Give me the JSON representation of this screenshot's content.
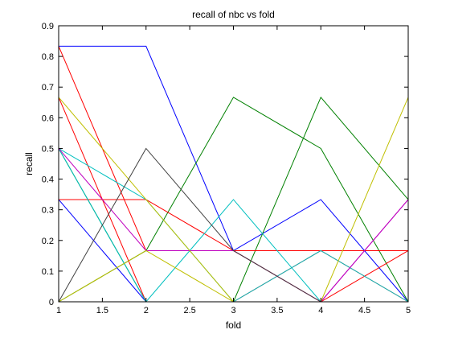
{
  "chart_data": {
    "type": "line",
    "title": "recall of nbc vs fold",
    "xlabel": "fold",
    "ylabel": "recall",
    "xlim": [
      1,
      5
    ],
    "ylim": [
      0,
      0.9
    ],
    "xticks": [
      "1",
      "1.5",
      "2",
      "2.5",
      "3",
      "3.5",
      "4",
      "4.5",
      "5"
    ],
    "yticks": [
      "0",
      "0.1",
      "0.2",
      "0.3",
      "0.4",
      "0.5",
      "0.6",
      "0.7",
      "0.8",
      "0.9"
    ],
    "grid": false,
    "x": [
      1,
      2,
      3,
      4,
      5
    ],
    "series": [
      {
        "color": "#0000ff",
        "values": [
          0.8333,
          0.8333,
          0.1667,
          0.3333,
          0.0
        ]
      },
      {
        "color": "#0000ff",
        "values": [
          0.3333,
          0.0,
          0.0,
          0.0,
          0.0
        ]
      },
      {
        "color": "#008000",
        "values": [
          0.0,
          0.1667,
          0.6667,
          0.5,
          0.0
        ]
      },
      {
        "color": "#008000",
        "values": [
          0.5,
          0.0,
          0.0,
          0.6667,
          0.3333
        ]
      },
      {
        "color": "#ff0000",
        "values": [
          0.8333,
          0.1667,
          0.1667,
          0.1667,
          0.1667
        ]
      },
      {
        "color": "#ff0000",
        "values": [
          0.6667,
          0.0,
          0.0,
          0.1667,
          0.0
        ]
      },
      {
        "color": "#ff0000",
        "values": [
          0.3333,
          0.3333,
          0.1667,
          0.0,
          0.1667
        ]
      },
      {
        "color": "#00bfbf",
        "values": [
          0.5,
          0.0,
          0.3333,
          0.0,
          0.0
        ]
      },
      {
        "color": "#00bfbf",
        "values": [
          0.5,
          0.3333,
          0.0,
          0.1667,
          0.0
        ]
      },
      {
        "color": "#bf00bf",
        "values": [
          0.5,
          0.1667,
          0.1667,
          0.0,
          0.3333
        ]
      },
      {
        "color": "#bf00bf",
        "values": [
          0.0,
          0.0,
          0.0,
          0.0,
          0.3333
        ]
      },
      {
        "color": "#bfbf00",
        "values": [
          0.0,
          0.1667,
          0.0,
          0.0,
          0.6667
        ]
      },
      {
        "color": "#bfbf00",
        "values": [
          0.6667,
          0.3333,
          0.0,
          0.0,
          0.0
        ]
      },
      {
        "color": "#404040",
        "values": [
          0.0,
          0.5,
          0.1667,
          0.0,
          0.0
        ]
      }
    ]
  }
}
